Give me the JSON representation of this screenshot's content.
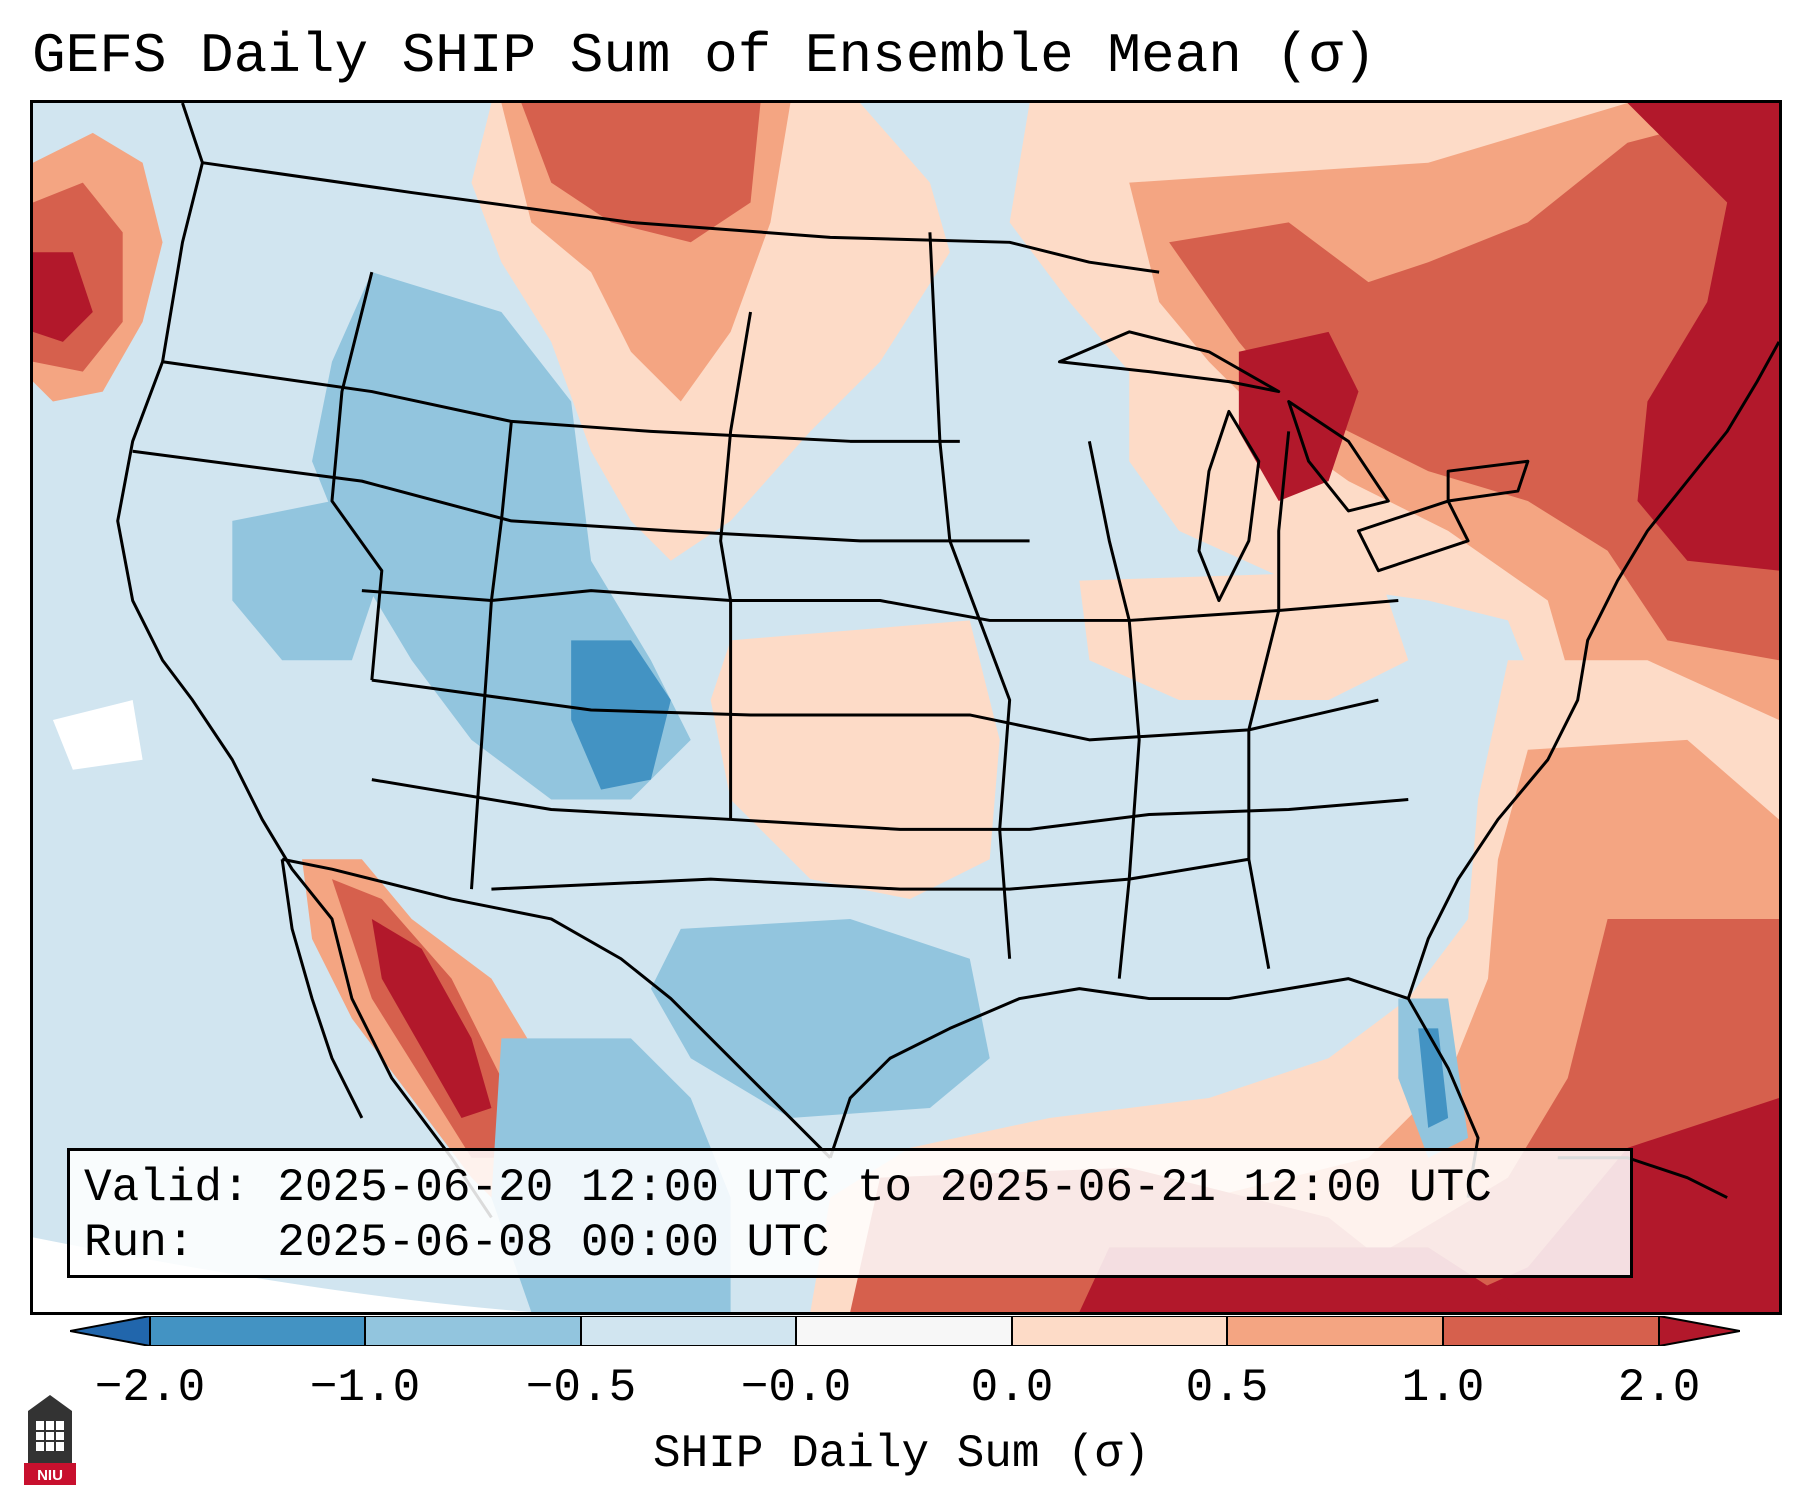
{
  "title": "GEFS Daily SHIP Sum of Ensemble Mean (σ)",
  "info": {
    "valid_label": "Valid:",
    "valid_value": "2025-06-20 12:00 UTC to 2025-06-21 12:00 UTC",
    "run_label": "Run:",
    "run_value": "2025-06-08 00:00 UTC"
  },
  "colorbar": {
    "label": "SHIP Daily Sum (σ)",
    "ticks": [
      "−2.0",
      "−1.0",
      "−0.5",
      "−0.0",
      "0.0",
      "0.5",
      "1.0",
      "2.0"
    ],
    "colors": {
      "lt_neg2": "#2166ac",
      "neg2_neg1": "#4393c3",
      "neg1_neg05": "#92c5de",
      "neg05_0": "#d1e5f0",
      "zero": "#f7f7f7",
      "0_05": "#fddbc7",
      "05_1": "#f4a582",
      "1_2": "#d6604d",
      "gt2": "#b2182b"
    }
  },
  "logo": {
    "text": "NIU",
    "color": "#c8102e"
  }
}
